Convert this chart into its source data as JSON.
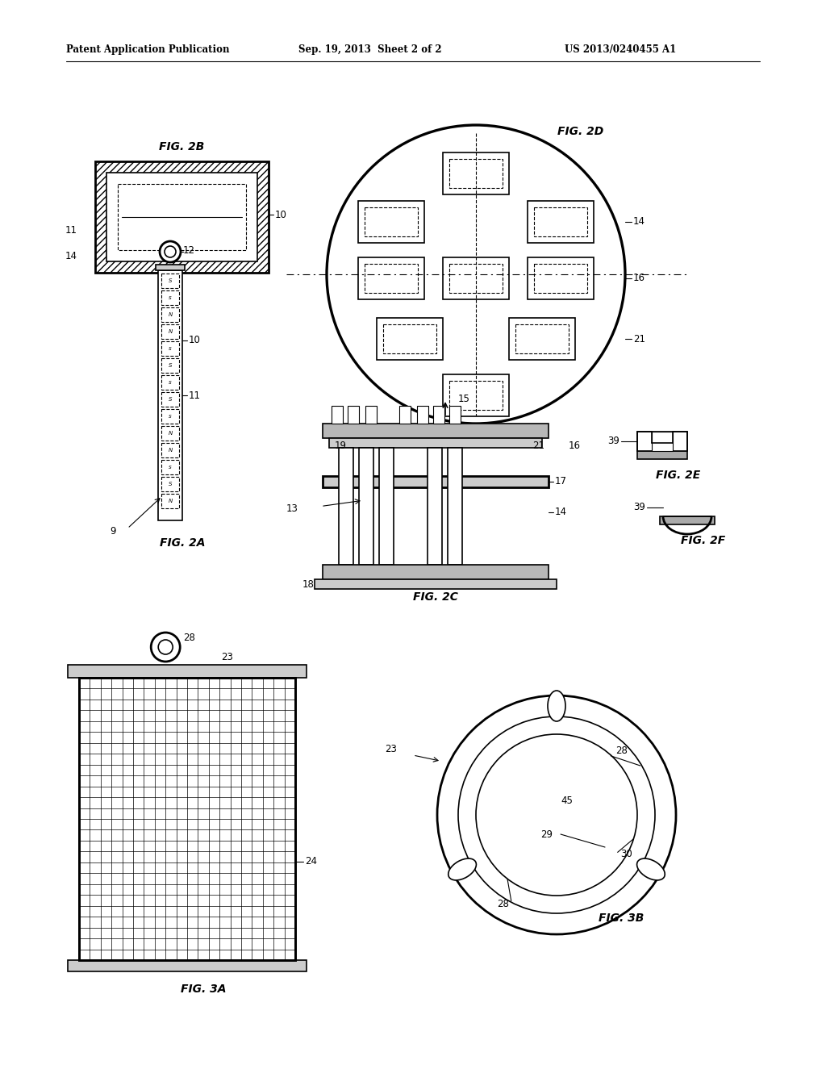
{
  "bg_color": "#ffffff",
  "line_color": "#000000",
  "header_left": "Patent Application Publication",
  "header_mid": "Sep. 19, 2013  Sheet 2 of 2",
  "header_right": "US 2013/0240455 A1"
}
